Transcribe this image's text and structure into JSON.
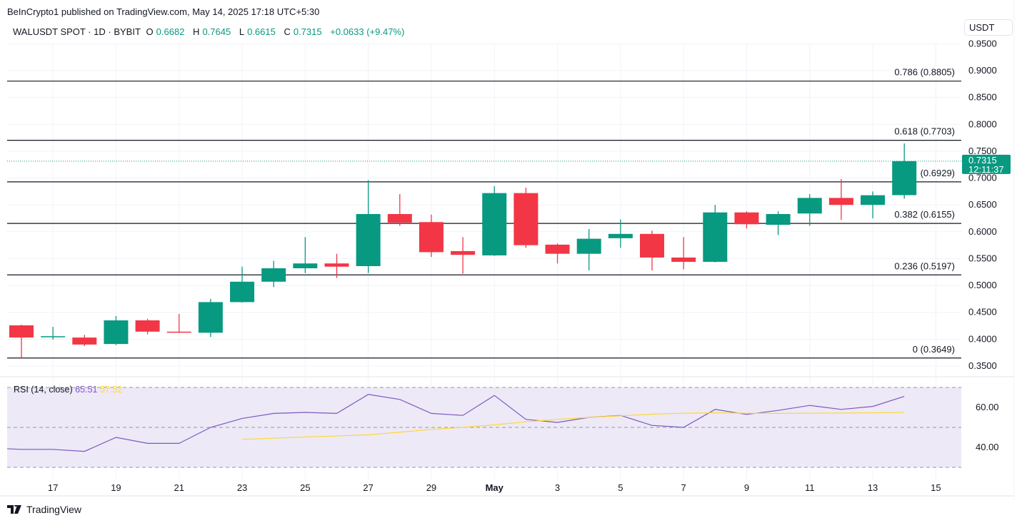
{
  "header": {
    "published": "BeInCrypto1 published on TradingView.com, May 14, 2025 17:18 UTC+5:30"
  },
  "legend": {
    "symbol": "WALUSDT SPOT · 1D · BYBIT",
    "o_label": "O",
    "o": "0.6682",
    "h_label": "H",
    "h": "0.7645",
    "l_label": "L",
    "l": "0.6615",
    "c_label": "C",
    "c": "0.7315",
    "change": "+0.0633 (+9.47%)"
  },
  "currency": "USDT",
  "last_price": {
    "value": "0.7315",
    "countdown": "12:11:37"
  },
  "rsi_legend": {
    "label": "RSI (14, close)",
    "rsi": "65.51",
    "ma": "57.52"
  },
  "footer": {
    "logo": "TradingView"
  },
  "colors": {
    "up": "#089981",
    "down": "#f23645",
    "rsi": "#7e57c2",
    "rsi_ma": "#fdd835",
    "rsi_band": "#ede9f7"
  },
  "chart_data": [
    {
      "type": "candlestick",
      "ylim": [
        0.35,
        0.95
      ],
      "yticks": [
        "0.9500",
        "0.9000",
        "0.8500",
        "0.8000",
        "0.7500",
        "0.7000",
        "0.6500",
        "0.6000",
        "0.5500",
        "0.5000",
        "0.4500",
        "0.4000",
        "0.3500"
      ],
      "xticks": [
        "17",
        "19",
        "21",
        "23",
        "25",
        "27",
        "29",
        "May",
        "3",
        "5",
        "7",
        "9",
        "11",
        "13",
        "15"
      ],
      "dates": [
        "Apr 16",
        "Apr 17",
        "Apr 18",
        "Apr 19",
        "Apr 20",
        "Apr 21",
        "Apr 22",
        "Apr 23",
        "Apr 24",
        "Apr 25",
        "Apr 26",
        "Apr 27",
        "Apr 28",
        "Apr 29",
        "Apr 30",
        "May 1",
        "May 2",
        "May 3",
        "May 4",
        "May 5",
        "May 6",
        "May 7",
        "May 8",
        "May 9",
        "May 10",
        "May 11",
        "May 12",
        "May 13",
        "May 14"
      ],
      "ohlc": [
        [
          0.4257,
          0.427,
          0.3649,
          0.4031
        ],
        [
          0.4045,
          0.423,
          0.399,
          0.4055
        ],
        [
          0.403,
          0.408,
          0.387,
          0.39
        ],
        [
          0.391,
          0.443,
          0.389,
          0.435
        ],
        [
          0.435,
          0.438,
          0.409,
          0.414
        ],
        [
          0.414,
          0.447,
          0.412,
          0.413
        ],
        [
          0.412,
          0.475,
          0.404,
          0.469
        ],
        [
          0.469,
          0.535,
          0.468,
          0.507
        ],
        [
          0.507,
          0.546,
          0.497,
          0.532
        ],
        [
          0.532,
          0.59,
          0.523,
          0.541
        ],
        [
          0.541,
          0.559,
          0.514,
          0.535
        ],
        [
          0.536,
          0.696,
          0.523,
          0.633
        ],
        [
          0.633,
          0.67,
          0.611,
          0.617
        ],
        [
          0.618,
          0.632,
          0.553,
          0.562
        ],
        [
          0.564,
          0.59,
          0.522,
          0.557
        ],
        [
          0.556,
          0.685,
          0.555,
          0.672
        ],
        [
          0.672,
          0.682,
          0.57,
          0.575
        ],
        [
          0.576,
          0.578,
          0.541,
          0.559
        ],
        [
          0.559,
          0.605,
          0.528,
          0.587
        ],
        [
          0.588,
          0.623,
          0.57,
          0.596
        ],
        [
          0.596,
          0.602,
          0.528,
          0.552
        ],
        [
          0.552,
          0.59,
          0.53,
          0.544
        ],
        [
          0.544,
          0.65,
          0.543,
          0.636
        ],
        [
          0.636,
          0.638,
          0.606,
          0.614
        ],
        [
          0.613,
          0.638,
          0.594,
          0.633
        ],
        [
          0.634,
          0.67,
          0.611,
          0.663
        ],
        [
          0.663,
          0.698,
          0.622,
          0.65
        ],
        [
          0.65,
          0.675,
          0.625,
          0.668
        ],
        [
          0.6682,
          0.7645,
          0.6615,
          0.7315
        ]
      ],
      "last_price": 0.7315,
      "fib_levels": [
        {
          "level": 0.8805,
          "label": "0.786 (0.8805)"
        },
        {
          "level": 0.7703,
          "label": "0.618 (0.7703)"
        },
        {
          "level": 0.6929,
          "label": "(0.6929)"
        },
        {
          "level": 0.6155,
          "label": "0.382 (0.6155)"
        },
        {
          "level": 0.5197,
          "label": "0.236 (0.5197)"
        },
        {
          "level": 0.3649,
          "label": "0 (0.3649)"
        }
      ]
    },
    {
      "type": "line",
      "title": "RSI (14, close)",
      "ylim": [
        25,
        75
      ],
      "yticks": [
        "60.00",
        "40.00"
      ],
      "bands": [
        30,
        50,
        70
      ],
      "series": [
        {
          "name": "RSI",
          "start": "Apr 16",
          "values": [
            39,
            39,
            38,
            45,
            42,
            42,
            50,
            54.5,
            57,
            57.5,
            57,
            66.5,
            64,
            57,
            56,
            66,
            54,
            52.5,
            55,
            56,
            51,
            50,
            59,
            56.5,
            58.5,
            61,
            59,
            60.5,
            65.51
          ]
        },
        {
          "name": "RSI-based MA",
          "start": "Apr 23",
          "values": [
            44,
            44.6,
            45.2,
            45.7,
            46.3,
            47.6,
            49,
            50,
            51.3,
            52.8,
            54,
            55,
            55.8,
            56.6,
            57.1,
            57.3,
            57.1,
            57,
            57.1,
            57.2,
            57.3,
            57.52
          ]
        }
      ]
    }
  ]
}
